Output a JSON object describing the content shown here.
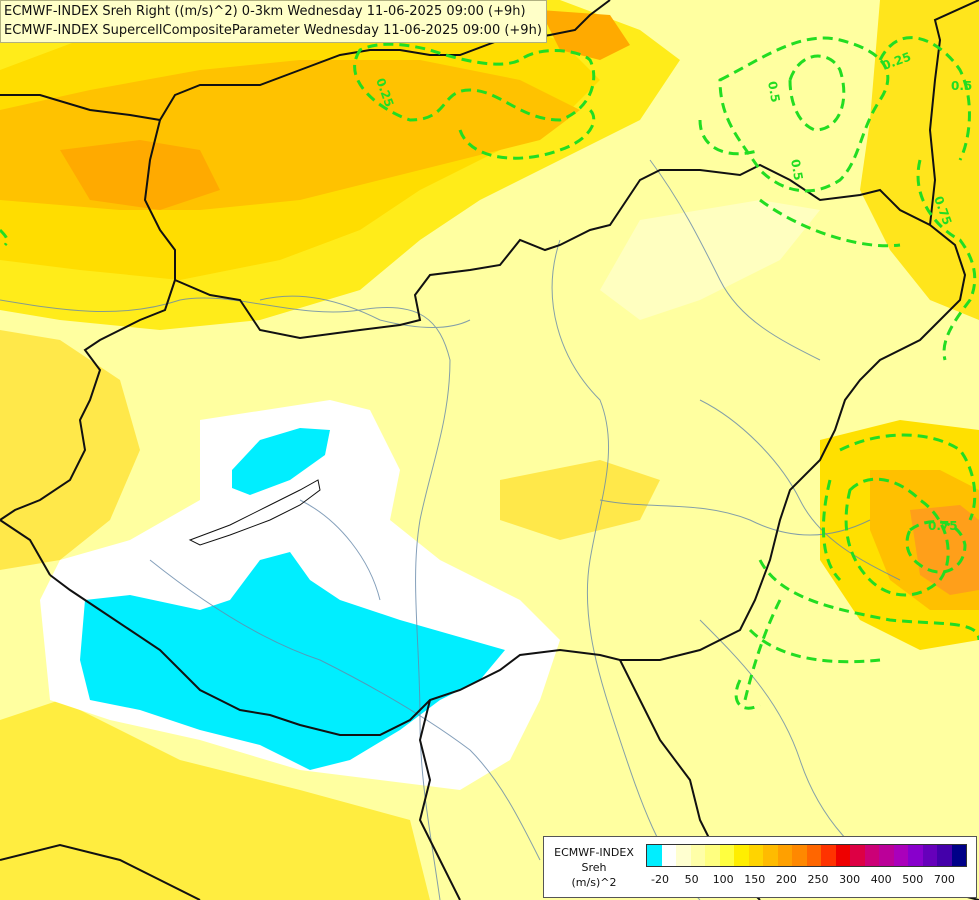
{
  "header": {
    "line1": "ECMWF-INDEX Sreh Right ((m/s)^2) 0-3km Wednesday 11-06-2025 09:00 (+9h)",
    "line2": "ECMWF-INDEX SupercellCompositeParameter Wednesday 11-06-2025 09:00 (+9h)"
  },
  "map": {
    "region": "Hungary and surroundings",
    "contour_color": "#22dd22",
    "contour_labels": [
      "0.25",
      "0.25",
      "0.5",
      "0.5",
      "0.75",
      "0.75",
      "0.5"
    ]
  },
  "legend": {
    "line1": "ECMWF-INDEX",
    "line2": "Sreh",
    "line3": "(m/s)^2",
    "colors": [
      "#00eeff",
      "#ffffff",
      "#ffffd0",
      "#ffffa8",
      "#ffff80",
      "#ffff40",
      "#ffee00",
      "#ffd400",
      "#ffbb00",
      "#ffa000",
      "#ff8800",
      "#ff6600",
      "#ff3300",
      "#ee0000",
      "#dd0044",
      "#cc0077",
      "#bb0099",
      "#aa00bb",
      "#8800cc",
      "#6600bb",
      "#4400aa",
      "#000088"
    ],
    "tick_labels": [
      "-20",
      "50",
      "100",
      "150",
      "200",
      "250",
      "300",
      "400",
      "500",
      "700"
    ]
  }
}
